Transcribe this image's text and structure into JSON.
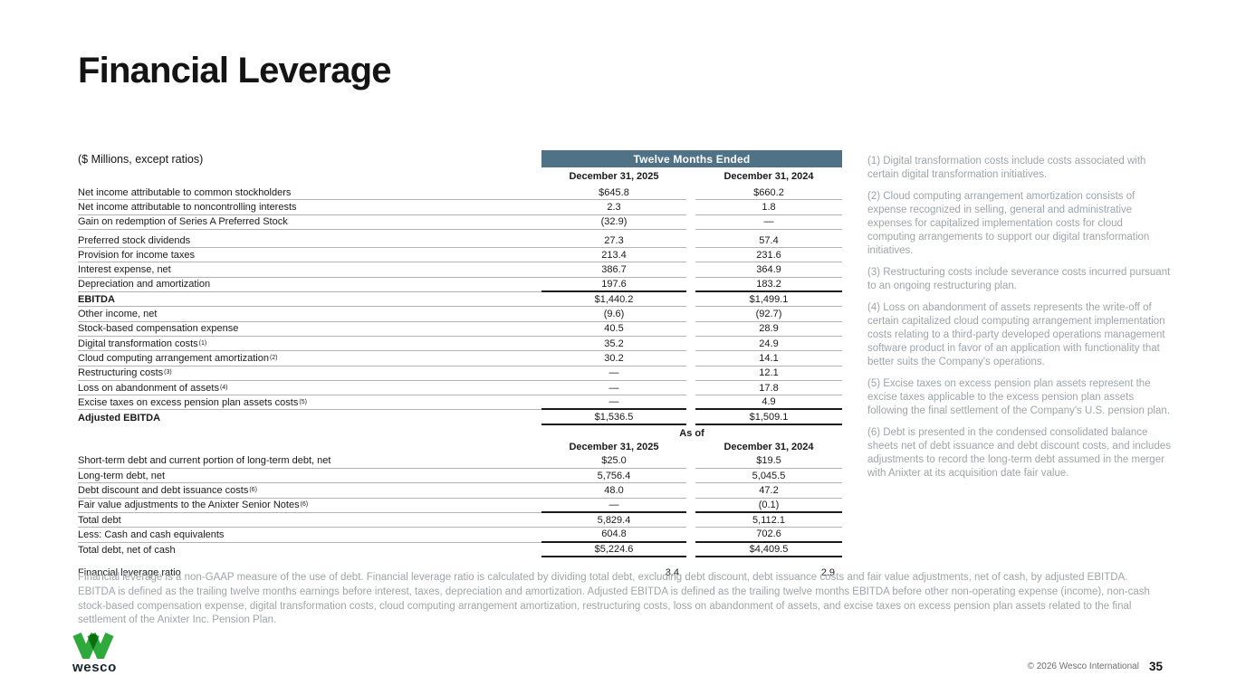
{
  "title": "Financial Leverage",
  "units_label": "($ Millions, except ratios)",
  "colors": {
    "banner_bg": "#4f7287",
    "logo_green": "#2fa83c",
    "logo_green_dark": "#00823a",
    "muted_text": "#9fa4a9"
  },
  "table1": {
    "banner": "Twelve Months Ended",
    "col_headers": [
      "December 31, 2025",
      "December 31, 2024"
    ],
    "rows": [
      {
        "label": "Net income attributable to common stockholders",
        "v2025": "$645.8",
        "v2024": "$660.2"
      },
      {
        "label": "Net income attributable to noncontrolling interests",
        "v2025": "2.3",
        "v2024": "1.8"
      },
      {
        "label": "Gain on redemption of Series A Preferred Stock",
        "v2025": "(32.9)",
        "v2024": "—",
        "gap_after": true
      },
      {
        "label": "Preferred stock dividends",
        "v2025": "27.3",
        "v2024": "57.4"
      },
      {
        "label": "Provision for income taxes",
        "v2025": "213.4",
        "v2024": "231.6"
      },
      {
        "label": "Interest expense, net",
        "v2025": "386.7",
        "v2024": "364.9"
      },
      {
        "label": "Depreciation and amortization",
        "v2025": "197.6",
        "v2024": "183.2",
        "val_border": "thick"
      },
      {
        "label": "EBITDA",
        "bold": true,
        "v2025": "$1,440.2",
        "v2024": "$1,499.1"
      },
      {
        "label": "Other income, net",
        "v2025": "(9.6)",
        "v2024": "(92.7)"
      },
      {
        "label": "Stock-based compensation expense",
        "v2025": "40.5",
        "v2024": "28.9"
      },
      {
        "label": "Digital transformation costs",
        "sup": "(1)",
        "v2025": "35.2",
        "v2024": "24.9"
      },
      {
        "label": "Cloud computing arrangement amortization",
        "sup": "(2)",
        "v2025": "30.2",
        "v2024": "14.1"
      },
      {
        "label": "Restructuring costs",
        "sup": "(3)",
        "v2025": "—",
        "v2024": "12.1"
      },
      {
        "label": "Loss on abandonment of assets",
        "sup": "(4)",
        "v2025": "—",
        "v2024": "17.8"
      },
      {
        "label": "Excise taxes on excess pension plan assets costs",
        "sup": "(5)",
        "v2025": "—",
        "v2024": "4.9",
        "val_border": "thick"
      },
      {
        "label": "Adjusted EBITDA",
        "bold": true,
        "v2025": "$1,536.5",
        "v2024": "$1,509.1",
        "val_border": "thick",
        "label_border": "none"
      }
    ]
  },
  "table2": {
    "banner": "As of",
    "col_headers": [
      "December 31, 2025",
      "December 31, 2024"
    ],
    "rows": [
      {
        "label": "Short-term debt and current portion of long-term debt, net",
        "v2025": "$25.0",
        "v2024": "$19.5"
      },
      {
        "label": "Long-term debt, net",
        "v2025": "5,756.4",
        "v2024": "5,045.5"
      },
      {
        "label": "Debt discount and debt issuance costs",
        "sup": "(6)",
        "v2025": "48.0",
        "v2024": "47.2"
      },
      {
        "label": "Fair value adjustments to the Anixter Senior Notes",
        "sup": "(6)",
        "v2025": "—",
        "v2024": "(0.1)",
        "val_border": "thick"
      },
      {
        "label": "Total debt",
        "v2025": "5,829.4",
        "v2024": "5,112.1"
      },
      {
        "label": "Less: Cash and cash equivalents",
        "v2025": "604.8",
        "v2024": "702.6",
        "val_border": "thick"
      },
      {
        "label": "Total debt, net of cash",
        "v2025": "$5,224.6",
        "v2024": "$4,409.5",
        "val_border": "thick",
        "label_border": "none"
      }
    ]
  },
  "ratio_row": {
    "label": "Financial leverage ratio",
    "v2025": "3.4",
    "v2024": "2.9"
  },
  "footnotes": [
    "(1) Digital transformation costs include costs associated with certain digital transformation initiatives.",
    "(2) Cloud computing arrangement amortization consists of expense recognized in selling, general and administrative expenses for capitalized implementation costs for cloud computing arrangements to support our digital transformation initiatives.",
    "(3) Restructuring costs include severance costs incurred pursuant to an ongoing restructuring plan.",
    "(4) Loss on abandonment of assets represents the write-off of certain capitalized cloud computing arrangement implementation costs relating to a third-party developed operations management software product in favor of an application with functionality that better suits the Company's operations.",
    "(5) Excise taxes on excess pension plan assets represent the excise taxes applicable to the excess pension plan assets following the final settlement of the Company's U.S. pension plan.",
    "(6) Debt is presented in the condensed consolidated balance sheets net of debt issuance and debt discount costs, and includes adjustments to record the long-term debt assumed in the merger with Anixter at its acquisition date fair value."
  ],
  "description": "Financial leverage is a non-GAAP measure of the use of debt. Financial leverage ratio is calculated by dividing total debt, excluding debt discount, debt issuance costs and fair value adjustments, net of cash, by adjusted EBITDA. EBITDA is defined as the trailing twelve months earnings before interest, taxes, depreciation and amortization. Adjusted EBITDA is defined as the trailing twelve months EBITDA before other non-operating expense (income), non-cash stock-based compensation expense, digital transformation costs, cloud computing arrangement amortization, restructuring costs, loss on abandonment of assets, and excise taxes on excess pension plan assets related to the final settlement of the Anixter Inc. Pension Plan.",
  "footer": {
    "logo_text": "wesco",
    "copyright": "© 2026 Wesco International",
    "page_number": "35"
  }
}
